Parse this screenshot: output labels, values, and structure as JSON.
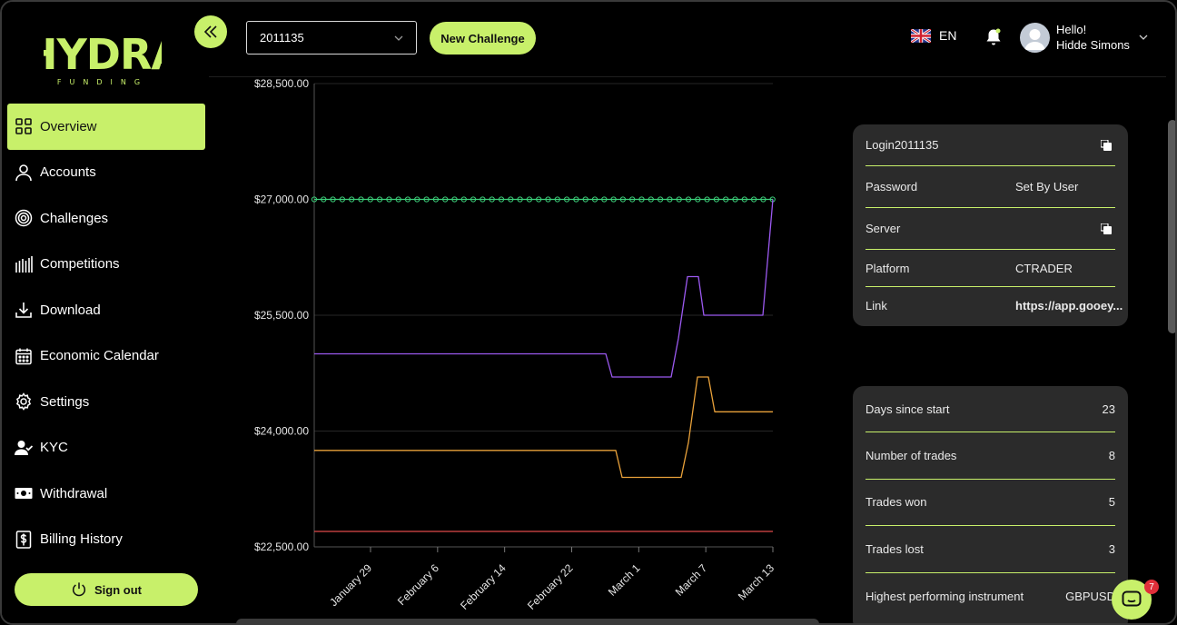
{
  "brand": {
    "name": "HYDRA",
    "tagline": "FUNDING",
    "accent": "#c8f06a"
  },
  "sidebar": {
    "items": [
      {
        "label": "Overview",
        "icon": "grid-icon",
        "active": true
      },
      {
        "label": "Accounts",
        "icon": "user-icon"
      },
      {
        "label": "Challenges",
        "icon": "target-icon"
      },
      {
        "label": "Competitions",
        "icon": "bars-icon"
      },
      {
        "label": "Download",
        "icon": "download-icon"
      },
      {
        "label": "Economic Calendar",
        "icon": "calendar-icon"
      },
      {
        "label": "Settings",
        "icon": "gear-icon"
      },
      {
        "label": "KYC",
        "icon": "user-check-icon"
      },
      {
        "label": "Withdrawal",
        "icon": "banknote-icon"
      },
      {
        "label": "Billing History",
        "icon": "dollar-doc-icon"
      }
    ],
    "signout_label": "Sign out"
  },
  "header": {
    "account_value": "2011135",
    "new_challenge_label": "New Challenge",
    "language": "EN",
    "greeting": "Hello!",
    "user_name": "Hidde Simons"
  },
  "chart_data": {
    "type": "line",
    "y_ticks": [
      "$28,500.00",
      "$27,000.00",
      "$25,500.00",
      "$24,000.00",
      "$22,500.00"
    ],
    "ylim": [
      22500,
      28500
    ],
    "x_ticks": [
      "January 29",
      "February 6",
      "February 14",
      "February 22",
      "March 1",
      "March 7",
      "March 13"
    ],
    "series": [
      {
        "color": "#3ccf7a",
        "markers": true,
        "values": [
          27000,
          27000
        ]
      },
      {
        "color": "#9b59f0",
        "values": [
          25000,
          25000,
          24700,
          24700,
          25200,
          26000,
          26000,
          25500,
          25500,
          27000
        ]
      },
      {
        "color": "#e8a13a",
        "values": [
          23750,
          23750,
          23400,
          23400,
          23850,
          24700,
          24700,
          24250,
          24250
        ]
      },
      {
        "color": "#e04a4a",
        "values": [
          22700,
          22700
        ]
      }
    ]
  },
  "login_panel": {
    "rows": [
      {
        "label": "Login",
        "value": "2011135",
        "copy": true
      },
      {
        "label": "Password",
        "value": "Set By User"
      },
      {
        "label": "Server",
        "value": "",
        "copy": true
      },
      {
        "label": "Platform",
        "value": "CTRADER"
      },
      {
        "label": "Link",
        "value": "https://app.gooey..."
      }
    ]
  },
  "stats_panel": {
    "rows": [
      {
        "label": "Days since start",
        "value": "23"
      },
      {
        "label": "Number of trades",
        "value": "8"
      },
      {
        "label": "Trades won",
        "value": "5"
      },
      {
        "label": "Trades lost",
        "value": "3"
      },
      {
        "label": "Highest performing instrument",
        "value": "GBPUSD"
      }
    ]
  },
  "chat": {
    "badge": "7"
  }
}
